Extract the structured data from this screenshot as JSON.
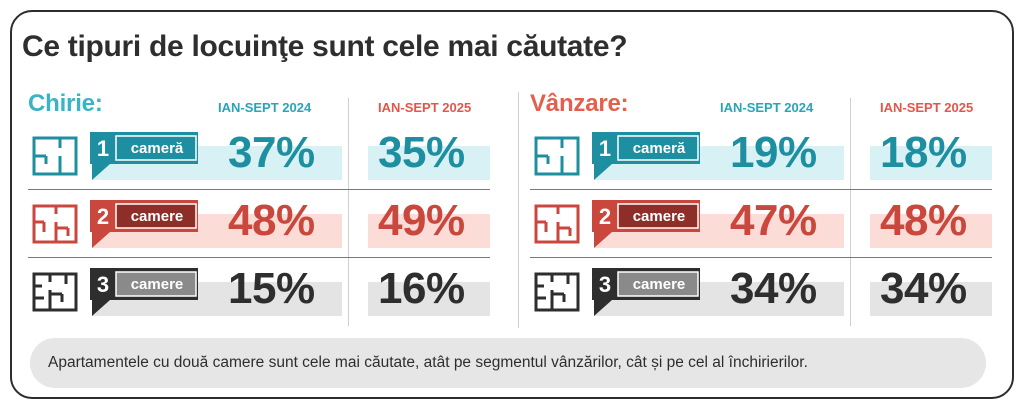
{
  "title": "Ce tipuri de locuinţe sunt cele mai căutate?",
  "colors": {
    "teal": "#1e8fa0",
    "coral": "#c9473d",
    "dark": "#2e2e2e"
  },
  "sections": [
    {
      "title": "Chirie:",
      "col_2024": "IAN-SEPT 2024",
      "col_2025": "IAN-SEPT 2025",
      "rows": [
        {
          "num": "1",
          "label": "cameră",
          "v2024": "37%",
          "v2025": "35%"
        },
        {
          "num": "2",
          "label": "camere",
          "v2024": "48%",
          "v2025": "49%"
        },
        {
          "num": "3",
          "label": "camere",
          "v2024": "15%",
          "v2025": "16%"
        }
      ]
    },
    {
      "title": "Vânzare:",
      "col_2024": "IAN-SEPT 2024",
      "col_2025": "IAN-SEPT 2025",
      "rows": [
        {
          "num": "1",
          "label": "cameră",
          "v2024": "19%",
          "v2025": "18%"
        },
        {
          "num": "2",
          "label": "camere",
          "v2024": "47%",
          "v2025": "48%"
        },
        {
          "num": "3",
          "label": "camere",
          "v2024": "34%",
          "v2025": "34%"
        }
      ]
    }
  ],
  "footer": "Apartamentele cu două camere sunt cele mai căutate, atât pe segmentul vânzărilor, cât și pe cel al închirierilor.",
  "chart_data": {
    "type": "table",
    "title": "Ce tipuri de locuinţe sunt cele mai căutate?",
    "categories": [
      "1 cameră",
      "2 camere",
      "3 camere"
    ],
    "series": [
      {
        "name": "Chirie: IAN-SEPT 2024",
        "values": [
          37,
          48,
          15
        ]
      },
      {
        "name": "Chirie: IAN-SEPT 2025",
        "values": [
          35,
          49,
          16
        ]
      },
      {
        "name": "Vânzare: IAN-SEPT 2024",
        "values": [
          19,
          47,
          34
        ]
      },
      {
        "name": "Vânzare: IAN-SEPT 2025",
        "values": [
          18,
          48,
          34
        ]
      }
    ]
  }
}
